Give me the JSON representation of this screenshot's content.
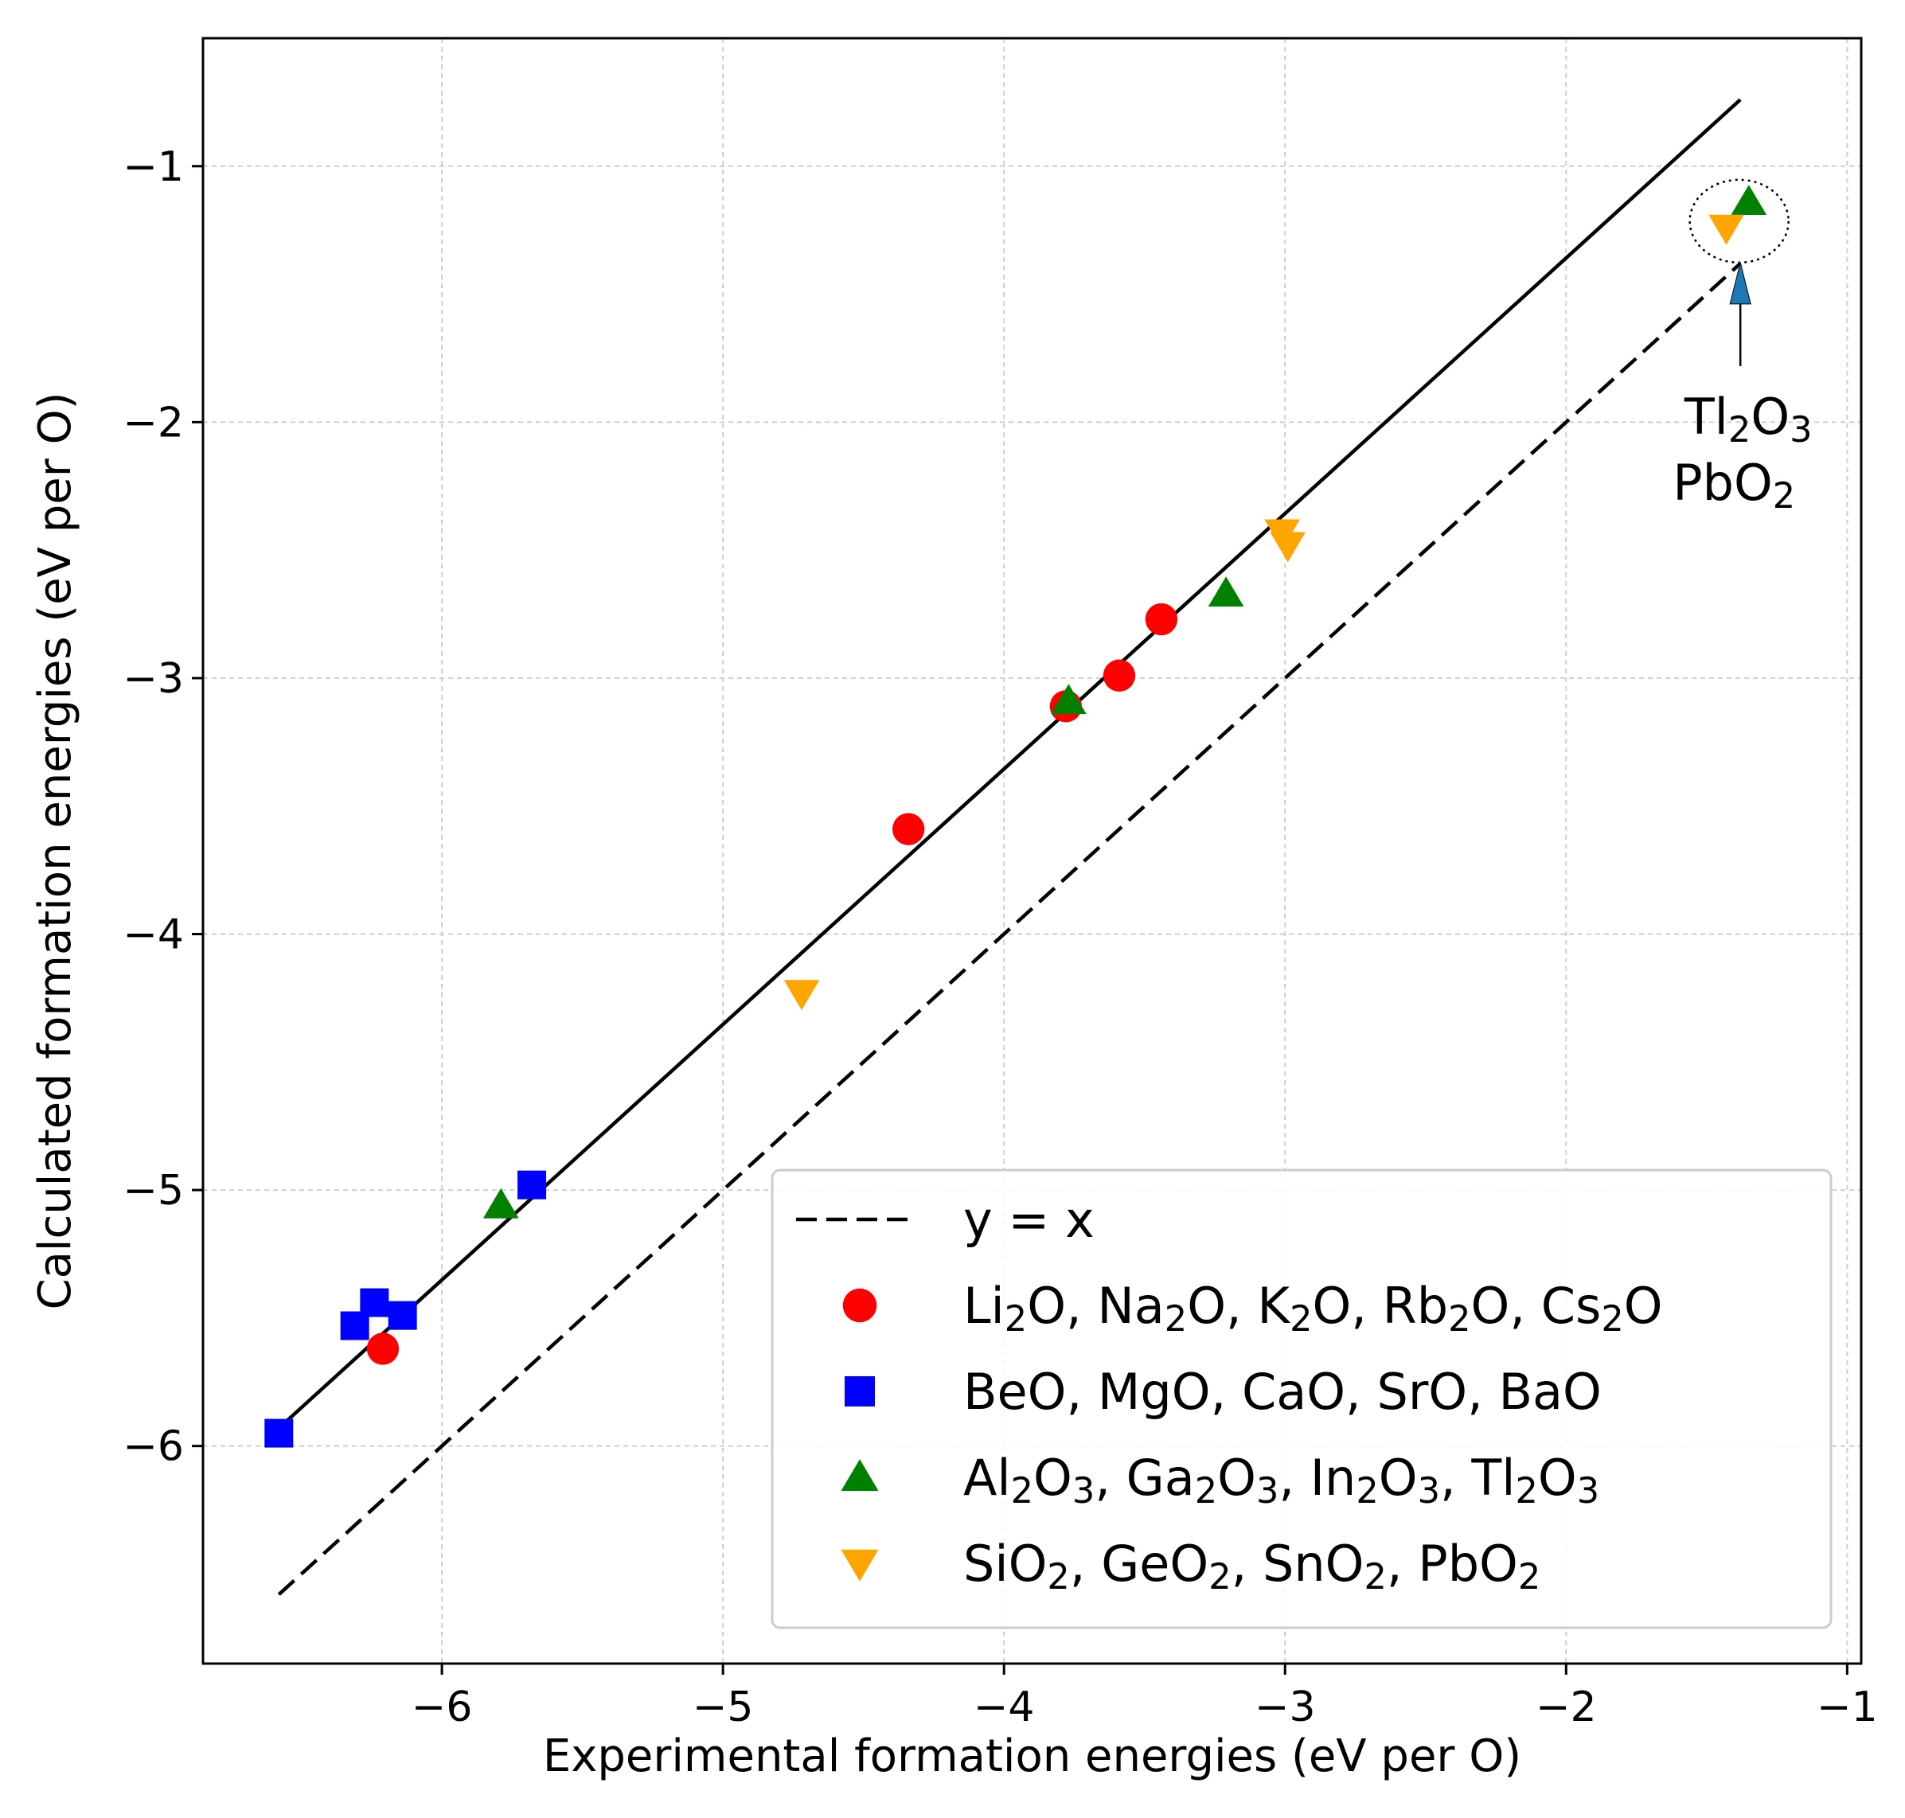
{
  "chart_data": {
    "type": "scatter",
    "xlabel": "Experimental formation energies (eV per O)",
    "ylabel": "Calculated formation energies (eV per O)",
    "xlim": [
      -6.85,
      -0.95
    ],
    "ylim": [
      -6.85,
      -0.5
    ],
    "grid": true,
    "x_ticks": [
      -6,
      -5,
      -4,
      -3,
      -2,
      -1
    ],
    "y_ticks": [
      -6,
      -5,
      -4,
      -3,
      -2,
      -1
    ],
    "x_tick_labels": [
      "−6",
      "−5",
      "−4",
      "−3",
      "−2",
      "−1"
    ],
    "y_tick_labels": [
      "−6",
      "−5",
      "−4",
      "−3",
      "−2",
      "−1"
    ],
    "legend_position": "lower-right",
    "lines": [
      {
        "name": "fit",
        "style": "solid",
        "color": "#000000",
        "x": [
          -6.58,
          -1.38
        ],
        "y": [
          -5.93,
          -0.74
        ],
        "in_legend": false
      },
      {
        "name": "y = x",
        "style": "dashed",
        "color": "#000000",
        "x": [
          -6.58,
          -1.38
        ],
        "y": [
          -6.58,
          -1.38
        ],
        "in_legend": true
      }
    ],
    "series": [
      {
        "name_parts": [
          "Li",
          "2",
          "O, Na",
          "2",
          "O, K",
          "2",
          "O, Rb",
          "2",
          "O, Cs",
          "2",
          "O"
        ],
        "marker": "circle",
        "color": "#ff0000",
        "points": [
          [
            -6.21,
            -5.62
          ],
          [
            -4.34,
            -3.59
          ],
          [
            -3.78,
            -3.11
          ],
          [
            -3.59,
            -2.99
          ],
          [
            -3.44,
            -2.77
          ]
        ]
      },
      {
        "name_parts": [
          "BeO, MgO, CaO, SrO, BaO"
        ],
        "marker": "square",
        "color": "#0000ff",
        "points": [
          [
            -6.58,
            -5.95
          ],
          [
            -6.31,
            -5.53
          ],
          [
            -6.24,
            -5.44
          ],
          [
            -6.14,
            -5.49
          ],
          [
            -5.68,
            -4.98
          ]
        ]
      },
      {
        "name_parts": [
          "Al",
          "2",
          "O",
          "3",
          ", Ga",
          "2",
          "O",
          "3",
          ", In",
          "2",
          "O",
          "3",
          ", Tl",
          "2",
          "O",
          "3"
        ],
        "marker": "triangle-up",
        "color": "#008000",
        "points": [
          [
            -5.79,
            -5.06
          ],
          [
            -3.77,
            -3.09
          ],
          [
            -3.21,
            -2.67
          ],
          [
            -1.35,
            -1.14
          ]
        ]
      },
      {
        "name_parts": [
          "SiO",
          "2",
          ", GeO",
          "2",
          ", SnO",
          "2",
          ", PbO",
          "2"
        ],
        "marker": "triangle-down",
        "color": "#ffa500",
        "points": [
          [
            -4.72,
            -4.23
          ],
          [
            -3.01,
            -2.43
          ],
          [
            -2.99,
            -2.48
          ],
          [
            -1.43,
            -1.24
          ]
        ]
      }
    ],
    "annotation": {
      "lines": [
        [
          "Tl",
          "2",
          "O",
          "3"
        ],
        [
          "PbO",
          "2"
        ]
      ],
      "arrow_color": "#1f77b4",
      "circled_points": [
        [
          -1.35,
          -1.14
        ],
        [
          -1.43,
          -1.24
        ]
      ]
    }
  }
}
